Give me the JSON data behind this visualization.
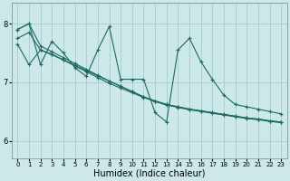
{
  "xlabel": "Humidex (Indice chaleur)",
  "bg_color": "#cce8e8",
  "grid_color": "#aacccc",
  "line_color": "#1a6b60",
  "xlim": [
    -0.5,
    23.5
  ],
  "ylim": [
    5.7,
    8.35
  ],
  "yticks": [
    6,
    7,
    8
  ],
  "xticks": [
    0,
    1,
    2,
    3,
    4,
    5,
    6,
    7,
    8,
    9,
    10,
    11,
    12,
    13,
    14,
    15,
    16,
    17,
    18,
    19,
    20,
    21,
    22,
    23
  ],
  "xlabel_fontsize": 7,
  "tick_fontsize": 6,
  "s1_x": [
    0,
    1,
    2,
    3,
    4,
    5,
    6,
    7,
    8,
    9,
    10,
    11,
    12,
    13,
    14,
    15,
    16,
    17,
    18,
    19,
    20,
    21,
    22,
    23
  ],
  "s1_y": [
    7.9,
    8.0,
    7.62,
    7.52,
    7.42,
    7.32,
    7.22,
    7.12,
    7.02,
    6.93,
    6.84,
    6.75,
    6.68,
    6.62,
    6.58,
    6.54,
    6.51,
    6.48,
    6.45,
    6.42,
    6.39,
    6.37,
    6.34,
    6.32
  ],
  "s2_x": [
    0,
    1,
    2,
    3,
    4,
    5,
    6,
    7,
    8,
    9,
    10,
    11,
    12,
    13,
    14,
    15,
    16,
    17,
    18,
    19,
    20,
    21,
    22,
    23
  ],
  "s2_y": [
    7.75,
    7.85,
    7.55,
    7.47,
    7.38,
    7.29,
    7.2,
    7.11,
    7.02,
    6.93,
    6.84,
    6.75,
    6.68,
    6.62,
    6.58,
    6.54,
    6.51,
    6.48,
    6.45,
    6.42,
    6.39,
    6.37,
    6.34,
    6.32
  ],
  "s3_x": [
    0,
    1,
    2,
    3,
    4,
    5,
    6,
    7,
    8,
    9,
    10,
    11,
    12,
    13,
    14,
    15,
    16,
    17,
    18,
    19,
    20,
    21,
    22,
    23
  ],
  "s3_y": [
    7.65,
    7.3,
    7.55,
    7.48,
    7.38,
    7.28,
    7.18,
    7.08,
    6.98,
    6.9,
    6.82,
    6.74,
    6.67,
    6.61,
    6.57,
    6.53,
    6.5,
    6.47,
    6.44,
    6.41,
    6.38,
    6.36,
    6.33,
    6.31
  ],
  "s4_x": [
    0,
    1,
    2,
    3,
    4,
    5,
    6,
    7,
    8,
    9,
    10,
    11,
    12,
    13,
    14,
    15,
    16,
    17,
    18,
    19,
    20,
    21,
    22,
    23
  ],
  "s4_y": [
    7.9,
    8.0,
    7.3,
    7.7,
    7.5,
    7.25,
    7.1,
    7.55,
    7.95,
    7.05,
    7.05,
    7.05,
    6.48,
    6.32,
    7.55,
    7.75,
    7.35,
    7.05,
    6.78,
    6.62,
    6.58,
    6.54,
    6.5,
    6.46
  ]
}
